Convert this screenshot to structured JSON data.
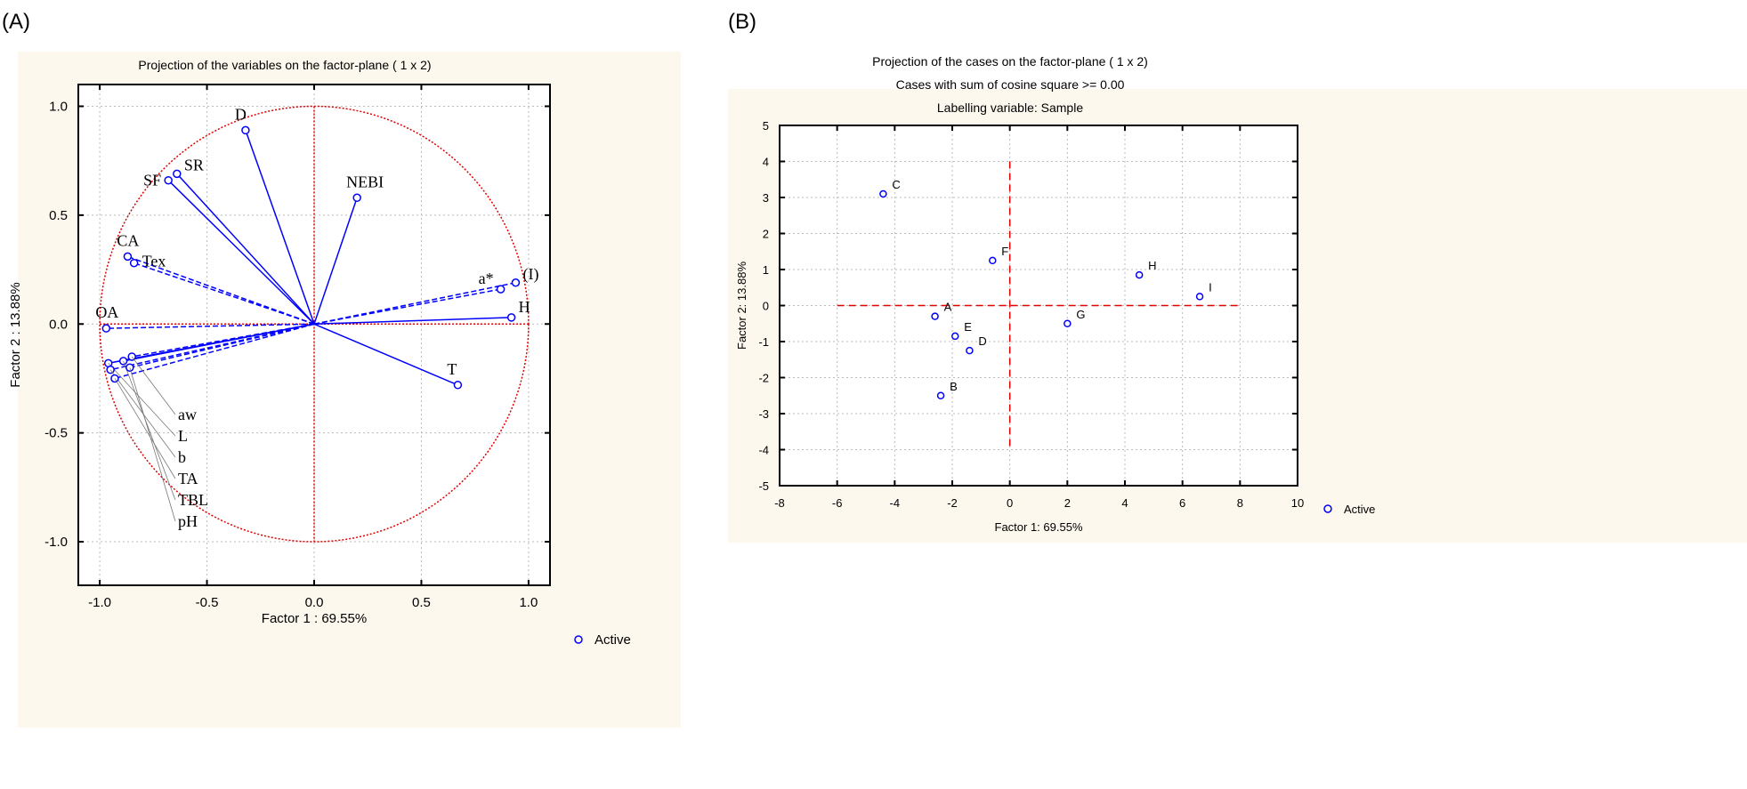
{
  "panel_labels": {
    "a": "(A)",
    "b": "(B)"
  },
  "colors": {
    "panel_bg": "#fdf8ee",
    "points": "#0000ff",
    "reference": "#e00000",
    "grid": "#bbbbbb"
  },
  "chart_data": [
    {
      "type": "scatter",
      "title": "Projection of the variables on the factor-plane (  1 x   2)",
      "xlabel": "Factor 1 : 69.55%",
      "ylabel": "Factor 2 : 13.88%",
      "xlim": [
        -1.1,
        1.1
      ],
      "ylim": [
        -1.2,
        1.1
      ],
      "xticks": [
        -1.0,
        -0.5,
        0.0,
        0.5,
        1.0
      ],
      "xtick_labels": [
        "-1.0",
        "-0.5",
        "0.0",
        "0.5",
        "1.0"
      ],
      "yticks": [
        1.0,
        0.5,
        0.0,
        -0.5,
        -1.0
      ],
      "ytick_labels": [
        "1.0",
        "0.5",
        "0.0",
        "-0.5",
        "-1.0"
      ],
      "grid": true,
      "unit_circle": true,
      "legend": {
        "label": "Active",
        "placement": "bottom-right-outside"
      },
      "points": [
        {
          "label": "D",
          "x": -0.32,
          "y": 0.89,
          "style": "solid"
        },
        {
          "label": "SR",
          "x": -0.64,
          "y": 0.69,
          "style": "solid"
        },
        {
          "label": "SF",
          "x": -0.68,
          "y": 0.66,
          "style": "solid"
        },
        {
          "label": "NEBI",
          "x": 0.2,
          "y": 0.58,
          "style": "solid"
        },
        {
          "label": "CA",
          "x": -0.87,
          "y": 0.31,
          "style": "dashed"
        },
        {
          "label": "Tex",
          "x": -0.84,
          "y": 0.28,
          "style": "dashed"
        },
        {
          "label": "a*",
          "x": 0.87,
          "y": 0.16,
          "style": "dashed"
        },
        {
          "label": "(I)",
          "x": 0.94,
          "y": 0.19,
          "style": "dashed"
        },
        {
          "label": "H",
          "x": 0.92,
          "y": 0.03,
          "style": "solid"
        },
        {
          "label": "T",
          "x": 0.67,
          "y": -0.28,
          "style": "solid"
        },
        {
          "label": "OA",
          "x": -0.97,
          "y": -0.02,
          "style": "dashed"
        },
        {
          "label": "aw",
          "x": -0.85,
          "y": -0.15,
          "style": "dashed"
        },
        {
          "label": "L",
          "x": -0.96,
          "y": -0.18,
          "style": "solid"
        },
        {
          "label": "b",
          "x": -0.95,
          "y": -0.21,
          "style": "dashed"
        },
        {
          "label": "TA",
          "x": -0.93,
          "y": -0.25,
          "style": "dashed"
        },
        {
          "label": "TBL",
          "x": -0.89,
          "y": -0.17,
          "style": "solid"
        },
        {
          "label": "pH",
          "x": -0.86,
          "y": -0.2,
          "style": "dashed"
        }
      ]
    },
    {
      "type": "scatter",
      "title": "Projection of the cases on the factor-plane (  1 x   2)",
      "subtitle": "Cases with sum of cosine square >=  0.00",
      "subtitle2": "Labelling variable: Sample",
      "xlabel": "Factor 1: 69.55%",
      "ylabel": "Factor 2: 13.88%",
      "xlim": [
        -8,
        10
      ],
      "ylim": [
        -5,
        5
      ],
      "xticks": [
        -8,
        -6,
        -4,
        -2,
        0,
        2,
        4,
        6,
        8,
        10
      ],
      "xtick_labels": [
        "-8",
        "-6",
        "-4",
        "-2",
        "0",
        "2",
        "4",
        "6",
        "8",
        "10"
      ],
      "yticks": [
        5,
        4,
        3,
        2,
        1,
        0,
        -1,
        -2,
        -3,
        -4,
        -5
      ],
      "ytick_labels": [
        "5",
        "4",
        "3",
        "2",
        "1",
        "0",
        "-1",
        "-2",
        "-3",
        "-4",
        "-5"
      ],
      "grid": true,
      "legend": {
        "label": "Active",
        "placement": "right-outside"
      },
      "points": [
        {
          "label": "C",
          "x": -4.4,
          "y": 3.1
        },
        {
          "label": "F",
          "x": -0.6,
          "y": 1.25
        },
        {
          "label": "H",
          "x": 4.5,
          "y": 0.85
        },
        {
          "label": "I",
          "x": 6.6,
          "y": 0.25
        },
        {
          "label": "A",
          "x": -2.6,
          "y": -0.3
        },
        {
          "label": "G",
          "x": 2.0,
          "y": -0.5
        },
        {
          "label": "E",
          "x": -1.9,
          "y": -0.85
        },
        {
          "label": "D",
          "x": -1.4,
          "y": -1.25
        },
        {
          "label": "B",
          "x": -2.4,
          "y": -2.5
        }
      ]
    }
  ]
}
